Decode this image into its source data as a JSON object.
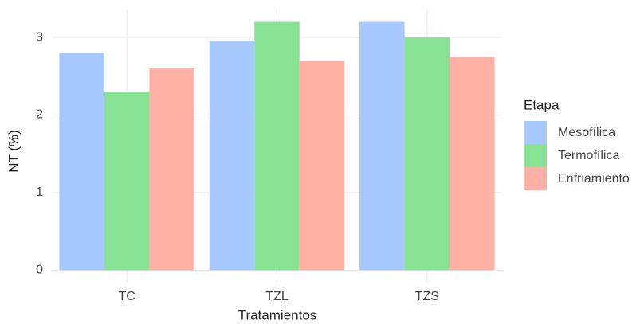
{
  "chart_data": {
    "type": "bar",
    "x_label": "Tratamientos",
    "y_label": "NT (%)",
    "categories": [
      "TC",
      "TZL",
      "TZS"
    ],
    "series": [
      {
        "name": "Mesofílica",
        "color": "#a6c8ff",
        "values": [
          2.8,
          2.96,
          3.2
        ]
      },
      {
        "name": "Termofílica",
        "color": "#87e293",
        "values": [
          2.3,
          3.2,
          3.0
        ]
      },
      {
        "name": "Enfriamiento",
        "color": "#ffb1a5",
        "values": [
          2.6,
          2.7,
          2.75
        ]
      }
    ],
    "legend_title": "Etapa",
    "legend_position": "right",
    "ylim": [
      -0.16,
      3.36
    ],
    "yticks": [
      0,
      1,
      2,
      3
    ],
    "grid": true
  }
}
